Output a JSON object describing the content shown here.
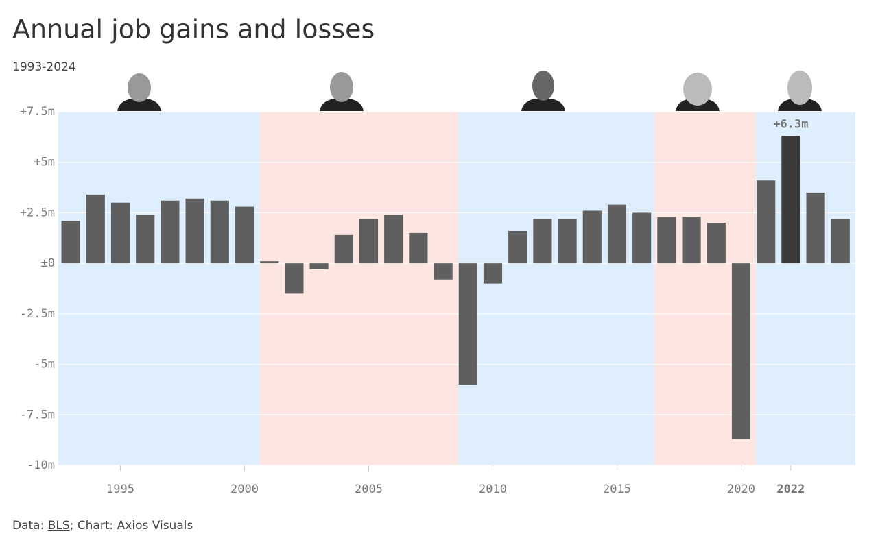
{
  "chart_data": {
    "type": "bar",
    "title": "Annual job gains and losses",
    "subtitle": "1993-2024",
    "source_prefix": "Data: ",
    "source_link": "BLS",
    "source_suffix": "; Chart: Axios Visuals",
    "x": [
      1993,
      1994,
      1995,
      1996,
      1997,
      1998,
      1999,
      2000,
      2001,
      2002,
      2003,
      2004,
      2005,
      2006,
      2007,
      2008,
      2009,
      2010,
      2011,
      2012,
      2013,
      2014,
      2015,
      2016,
      2017,
      2018,
      2019,
      2020,
      2021,
      2022,
      2023,
      2024
    ],
    "values": [
      2.1,
      3.4,
      3.0,
      2.4,
      3.1,
      3.2,
      3.1,
      2.8,
      0.1,
      -1.5,
      -0.3,
      1.4,
      2.2,
      2.4,
      1.5,
      -0.8,
      -6.0,
      -1.0,
      1.6,
      2.2,
      2.2,
      2.6,
      2.9,
      2.5,
      2.3,
      2.3,
      2.0,
      -8.7,
      4.1,
      6.3,
      3.5,
      2.2
    ],
    "value_labels": [
      null,
      null,
      null,
      null,
      null,
      null,
      null,
      null,
      null,
      null,
      null,
      null,
      null,
      null,
      null,
      null,
      null,
      null,
      null,
      null,
      null,
      null,
      null,
      null,
      null,
      null,
      null,
      null,
      null,
      "+6.3m",
      null,
      null
    ],
    "color": "#5f5f5f",
    "highlight": 2022,
    "highlight_color": "#3a3a3a",
    "xlim": [
      1992.5,
      2024.6
    ],
    "xticks": [
      1995,
      2000,
      2005,
      2010,
      2015,
      2020,
      2022
    ],
    "ylim": [
      -10,
      7.5
    ],
    "yticks": [
      {
        "value": 7.5,
        "label": "+7.5m"
      },
      {
        "value": 5,
        "label": "+5m"
      },
      {
        "value": 2.5,
        "label": "+2.5m"
      },
      {
        "value": 0,
        "label": "±0"
      },
      {
        "value": -2.5,
        "label": "-2.5m"
      },
      {
        "value": -5,
        "label": "-5m"
      },
      {
        "value": -7.5,
        "label": "-7.5m"
      },
      {
        "value": -10,
        "label": "-10m"
      }
    ],
    "grid": true,
    "bands": [
      {
        "from": 1992.5,
        "to": 2000.6,
        "color": "#deeefd"
      },
      {
        "from": 2000.6,
        "to": 2008.6,
        "color": "#fde6e1"
      },
      {
        "from": 2008.6,
        "to": 2016.5,
        "color": "#deeefd"
      },
      {
        "from": 2016.5,
        "to": 2020.6,
        "color": "#fde6e1"
      },
      {
        "from": 2020.6,
        "to": 2024.6,
        "color": "#deeefd"
      }
    ]
  }
}
